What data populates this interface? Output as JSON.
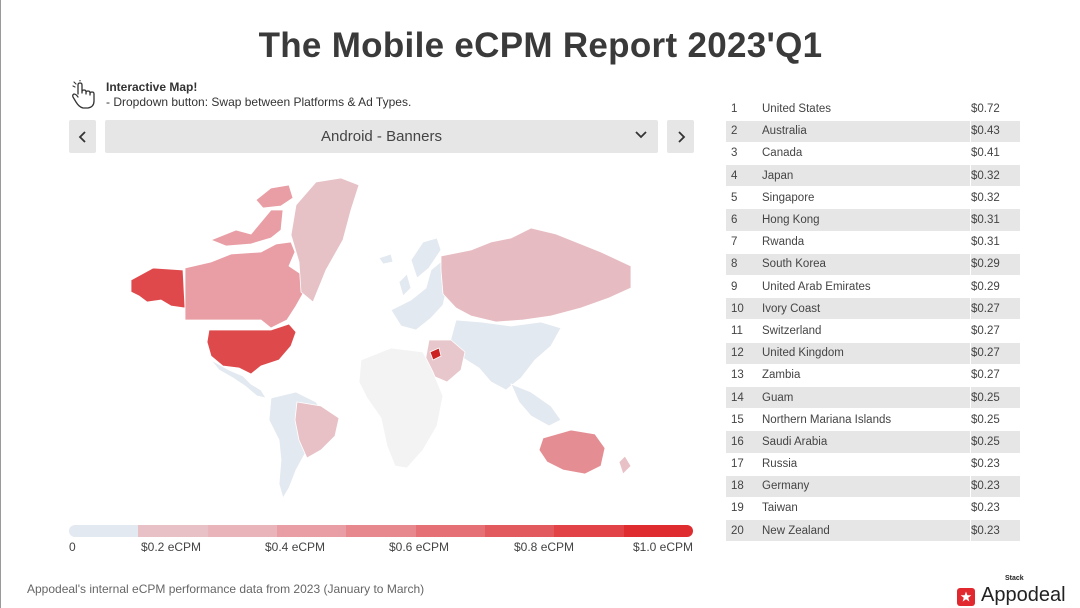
{
  "title": "The Mobile eCPM Report 2023'Q1",
  "hint": {
    "title": "Interactive Map!",
    "text": "- Dropdown button: Swap between Platforms & Ad Types.",
    "icon": "pointer-hand-icon"
  },
  "selector": {
    "value": "Android - Banners",
    "prev_icon": "chevron-left-icon",
    "next_icon": "chevron-right-icon",
    "caret_icon": "chevron-down-icon"
  },
  "legend": {
    "colors": [
      "#e3e9f0",
      "#e7c1c6",
      "#e9b5bb",
      "#e89ea4",
      "#e7878e",
      "#e57076",
      "#e35a5e",
      "#e14347",
      "#de2c2f"
    ],
    "labels": [
      "0",
      "$0.2 eCPM",
      "$0.4 eCPM",
      "$0.6 eCPM",
      "$0.8 eCPM",
      "$1.0 eCPM"
    ]
  },
  "ranking": [
    {
      "rank": "1",
      "country": "United States",
      "value": "$0.72"
    },
    {
      "rank": "2",
      "country": "Australia",
      "value": "$0.43"
    },
    {
      "rank": "3",
      "country": "Canada",
      "value": "$0.41"
    },
    {
      "rank": "4",
      "country": "Japan",
      "value": "$0.32"
    },
    {
      "rank": "5",
      "country": "Singapore",
      "value": "$0.32"
    },
    {
      "rank": "6",
      "country": "Hong Kong",
      "value": "$0.31"
    },
    {
      "rank": "7",
      "country": "Rwanda",
      "value": "$0.31"
    },
    {
      "rank": "8",
      "country": "South Korea",
      "value": "$0.29"
    },
    {
      "rank": "9",
      "country": "United Arab Emirates",
      "value": "$0.29"
    },
    {
      "rank": "10",
      "country": "Ivory Coast",
      "value": "$0.27"
    },
    {
      "rank": "11",
      "country": "Switzerland",
      "value": "$0.27"
    },
    {
      "rank": "12",
      "country": "United Kingdom",
      "value": "$0.27"
    },
    {
      "rank": "13",
      "country": "Zambia",
      "value": "$0.27"
    },
    {
      "rank": "14",
      "country": "Guam",
      "value": "$0.25"
    },
    {
      "rank": "15",
      "country": "Northern Mariana Islands",
      "value": "$0.25"
    },
    {
      "rank": "16",
      "country": "Saudi Arabia",
      "value": "$0.25"
    },
    {
      "rank": "17",
      "country": "Russia",
      "value": "$0.23"
    },
    {
      "rank": "18",
      "country": "Germany",
      "value": "$0.23"
    },
    {
      "rank": "19",
      "country": "Taiwan",
      "value": "$0.23"
    },
    {
      "rank": "20",
      "country": "New Zealand",
      "value": "$0.23"
    }
  ],
  "map_colors": {
    "usa": "#de4a4c",
    "alaska": "#e0494b",
    "canada": "#e89ea4",
    "greenland": "#e6c1c6",
    "latin": "#e3e9f0",
    "brazil_south": "#e7c1c6",
    "europe": "#e3e9f0",
    "russia": "#e6bcc2",
    "asia": "#e3e9f0",
    "africa": "#f3f3f3",
    "middle_east": "#e8c7cc",
    "australia": "#e48e93",
    "new_zealand": "#e7c1c6",
    "highlight": "#cc2222"
  },
  "footer": {
    "note": "Appodeal's internal eCPM performance data from 2023 (January to March)",
    "brand_stack": "Stack",
    "brand_name": "Appodeal",
    "brand_color": "#e0282e"
  }
}
